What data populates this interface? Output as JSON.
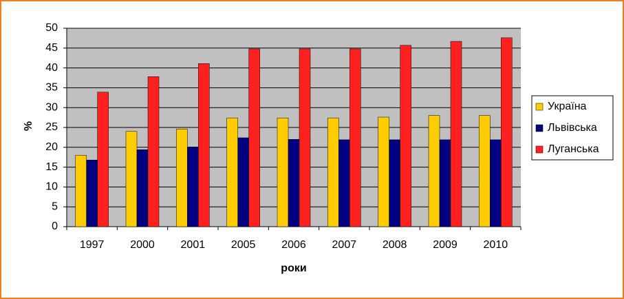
{
  "chart_data": {
    "type": "bar",
    "categories": [
      "1997",
      "2000",
      "2001",
      "2005",
      "2006",
      "2007",
      "2008",
      "2009",
      "2010"
    ],
    "series": [
      {
        "name": "Україна",
        "color": "#ffcc00",
        "values": [
          18,
          24,
          24.6,
          27.4,
          27.4,
          27.4,
          27.6,
          28,
          28
        ]
      },
      {
        "name": "Львівська",
        "color": "#000080",
        "values": [
          16.8,
          19.4,
          20.1,
          22.4,
          22,
          21.9,
          21.9,
          21.9,
          21.9
        ]
      },
      {
        "name": "Луганська",
        "color": "#ff2020",
        "values": [
          33.9,
          37.8,
          41.1,
          44.8,
          44.8,
          44.8,
          45.7,
          46.7,
          47.6
        ]
      }
    ],
    "x_label": "роки",
    "y_label": "%",
    "ylim": [
      0,
      50
    ],
    "yticks": [
      0,
      5,
      10,
      15,
      20,
      25,
      30,
      35,
      40,
      45,
      50
    ],
    "grid": true,
    "legend": "right"
  }
}
